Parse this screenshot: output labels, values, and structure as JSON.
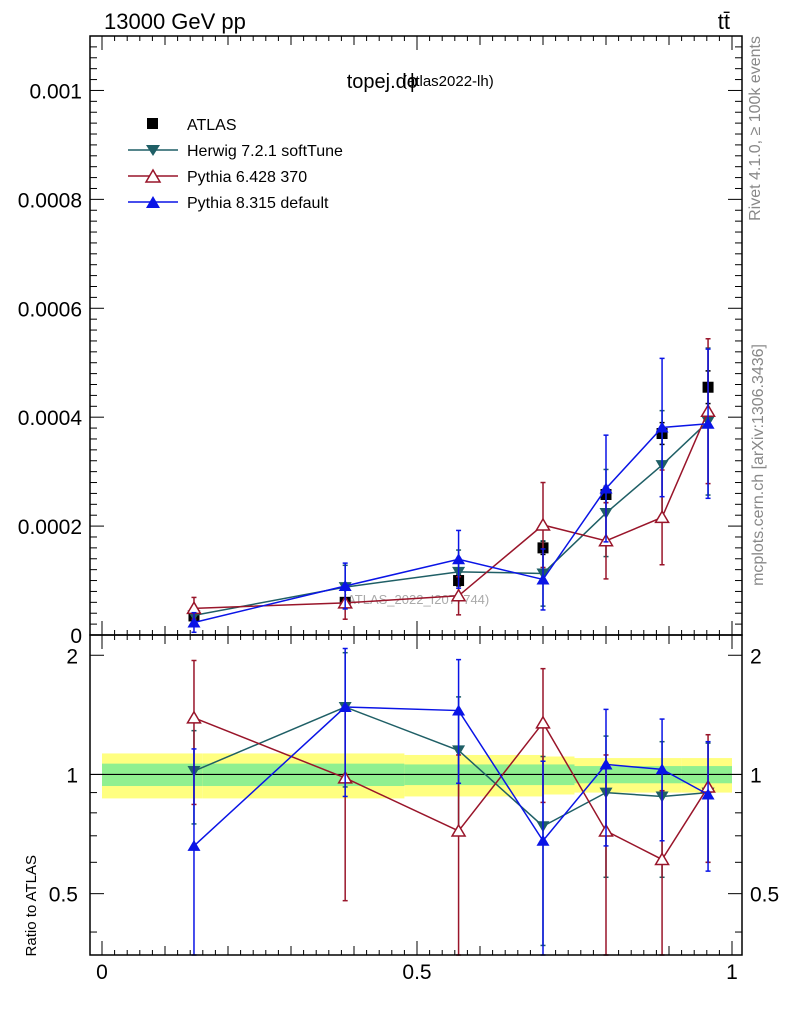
{
  "header": {
    "energy_label": "13000 GeV pp",
    "process_label": "tt̄",
    "title": "topej.dϕ",
    "analysis": "(atlas2022-lh)",
    "watermark": "(ATLAS_2022_I2077744)",
    "side_rivet": "Rivet 4.1.0, ≥ 100k events",
    "side_mcplots": "mcplots.cern.ch [arXiv:1306.3436]"
  },
  "colors": {
    "atlas": "#000000",
    "herwig": "#1f5f66",
    "pythia6": "#99152a",
    "pythia8": "#0a14e6",
    "band_outer": "#ffff80",
    "band_inner": "#90f090"
  },
  "chart_data": [
    {
      "type": "scatter",
      "panel": "main",
      "x": [
        0.146,
        0.386,
        0.566,
        0.7,
        0.8,
        0.889,
        0.962
      ],
      "ylim": [
        0,
        0.0011
      ],
      "yticks": [
        0,
        0.0002,
        0.0004,
        0.0006,
        0.0008,
        0.001
      ],
      "ytick_labels": [
        "0",
        "0.0002",
        "0.0004",
        "0.0006",
        "0.0008",
        "0.001"
      ],
      "legend": [
        "ATLAS",
        "Herwig 7.2.1 softTune",
        "Pythia 6.428 370",
        "Pythia 8.315 default"
      ],
      "series": [
        {
          "name": "ATLAS",
          "key": "atlas",
          "marker": "square",
          "values": [
            3.5e-05,
            6e-05,
            0.0001,
            0.00016,
            0.000258,
            0.00037,
            0.000455
          ],
          "err": [
            5e-06,
            8e-06,
            1e-05,
            1.2e-05,
            1.5e-05,
            2e-05,
            3e-05
          ]
        },
        {
          "name": "Herwig 7.2.1 softTune",
          "key": "herwig",
          "marker": "triangle-down",
          "values": [
            3.6e-05,
            8.8e-05,
            0.000116,
            0.000113,
            0.000224,
            0.000312,
            0.000392
          ],
          "err": [
            1e-05,
            4e-05,
            4e-05,
            6e-05,
            8e-05,
            0.0001,
            0.000135
          ]
        },
        {
          "name": "Pythia 6.428 370",
          "key": "pythia6",
          "marker": "triangle-up-open",
          "values": [
            4.9e-05,
            5.9e-05,
            7.2e-05,
            0.000202,
            0.000173,
            0.000216,
            0.000411
          ],
          "err": [
            2e-05,
            3e-05,
            3.5e-05,
            7.8e-05,
            7e-05,
            8.7e-05,
            0.000133
          ]
        },
        {
          "name": "Pythia 8.315 default",
          "key": "pythia8",
          "marker": "triangle-up",
          "values": [
            2.3e-05,
            9e-05,
            0.000139,
            0.000102,
            0.000269,
            0.000381,
            0.000388
          ],
          "err": [
            1.8e-05,
            4.2e-05,
            5.3e-05,
            5.6e-05,
            9.8e-05,
            0.000127,
            0.000137
          ]
        }
      ]
    },
    {
      "type": "scatter",
      "panel": "ratio",
      "ylabel": "Ratio to ATLAS",
      "xlim": [
        0,
        1
      ],
      "ylim": [
        0.35,
        2.25
      ],
      "xticks": [
        0,
        0.5,
        1
      ],
      "xtick_labels": [
        "0",
        "0.5",
        "1"
      ],
      "yticks": [
        0.5,
        1,
        2
      ],
      "ytick_labels": [
        "0.5",
        "1",
        "2"
      ],
      "x": [
        0.146,
        0.386,
        0.566,
        0.7,
        0.8,
        0.889,
        0.962
      ],
      "bands": [
        {
          "x": [
            0,
            0.16,
            0.48,
            0.7,
            0.75,
            0.9,
            0.92,
            1.0
          ],
          "outer": [
            0.13,
            0.13,
            0.12,
            0.11,
            0.1,
            0.1,
            0.1,
            0.12
          ],
          "inner": [
            0.065,
            0.065,
            0.06,
            0.06,
            0.05,
            0.05,
            0.05,
            0.06
          ]
        }
      ],
      "series": [
        {
          "name": "Herwig 7.2.1 softTune",
          "key": "herwig",
          "marker": "triangle-down",
          "values": [
            1.02,
            1.48,
            1.15,
            0.74,
            0.9,
            0.88,
            0.9
          ],
          "err": [
            0.27,
            0.55,
            0.42,
            0.37,
            0.35,
            0.33,
            0.3
          ]
        },
        {
          "name": "Pythia 6.428 370",
          "key": "pythia6",
          "marker": "triangle-up-open",
          "values": [
            1.39,
            0.98,
            0.72,
            1.35,
            0.72,
            0.61,
            0.93
          ],
          "err": [
            0.55,
            0.5,
            0.4,
            0.5,
            0.4,
            0.3,
            0.33
          ]
        },
        {
          "name": "Pythia 8.315 default",
          "key": "pythia8",
          "marker": "triangle-up",
          "values": [
            0.66,
            1.48,
            1.45,
            0.68,
            1.06,
            1.03,
            0.89
          ],
          "err": [
            0.5,
            0.6,
            0.5,
            0.4,
            0.4,
            0.35,
            0.32
          ]
        }
      ]
    }
  ]
}
